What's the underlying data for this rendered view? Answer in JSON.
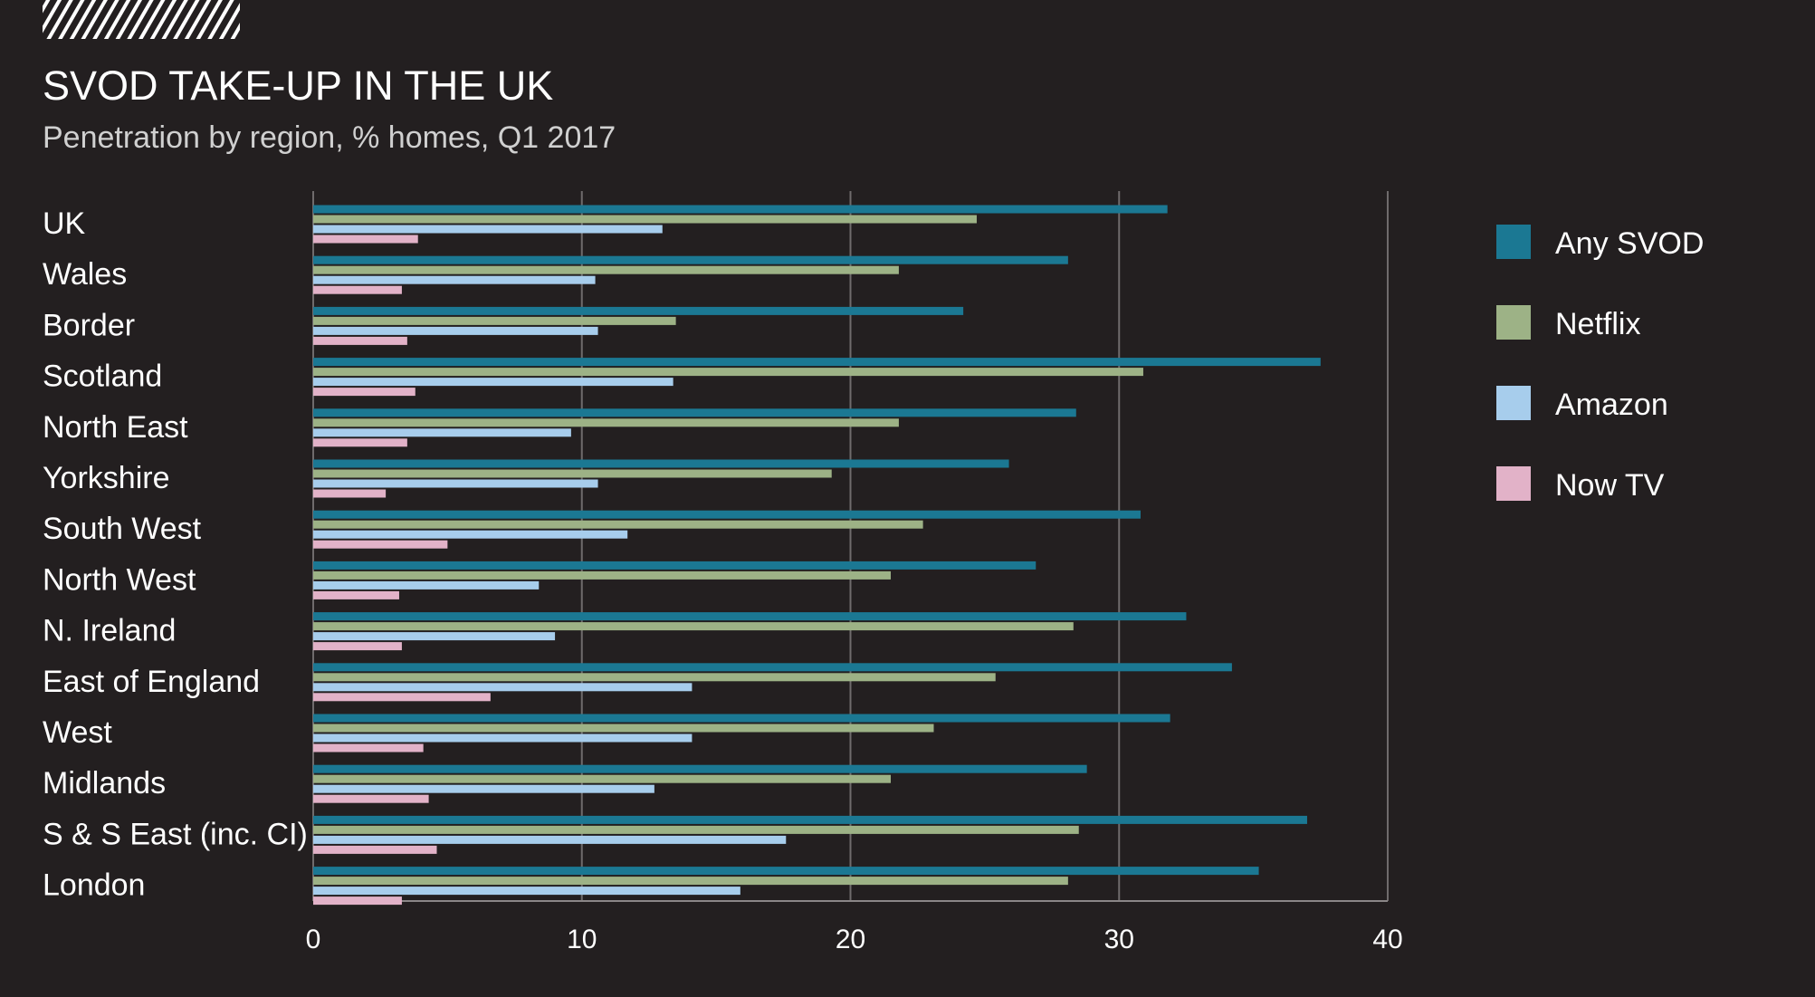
{
  "chart_data": {
    "type": "bar",
    "orientation": "horizontal",
    "title": "SVOD TAKE-UP IN THE UK",
    "subtitle": "Penetration by region, % homes, Q1 2017",
    "xlabel": "",
    "ylabel": "",
    "xlim": [
      0,
      40
    ],
    "xticks": [
      "0",
      "10",
      "20",
      "30",
      "40"
    ],
    "grid": true,
    "legend_position": "right",
    "categories": [
      "UK",
      "Wales",
      "Border",
      "Scotland",
      "North East",
      "Yorkshire",
      "South West",
      "North West",
      "N. Ireland",
      "East of England",
      "West",
      "Midlands",
      "S & S East (inc. CI)",
      "London"
    ],
    "series": [
      {
        "name": "Any SVOD",
        "color": "#1b7893",
        "values": [
          31.8,
          28.1,
          24.2,
          37.5,
          28.4,
          25.9,
          30.8,
          26.9,
          32.5,
          34.2,
          31.9,
          28.8,
          37.0,
          35.2
        ]
      },
      {
        "name": "Netflix",
        "color": "#9db286",
        "values": [
          24.7,
          21.8,
          13.5,
          30.9,
          21.8,
          19.3,
          22.7,
          21.5,
          28.3,
          25.4,
          23.1,
          21.5,
          28.5,
          28.1
        ]
      },
      {
        "name": "Amazon",
        "color": "#a7cdec",
        "values": [
          13.0,
          10.5,
          10.6,
          13.4,
          9.6,
          10.6,
          11.7,
          8.4,
          9.0,
          14.1,
          14.1,
          12.7,
          17.6,
          15.9
        ]
      },
      {
        "name": "Now TV",
        "color": "#e2b2c8",
        "values": [
          3.9,
          3.3,
          3.5,
          3.8,
          3.5,
          2.7,
          5.0,
          3.2,
          3.3,
          6.6,
          4.1,
          4.3,
          4.6,
          3.3
        ]
      }
    ]
  }
}
